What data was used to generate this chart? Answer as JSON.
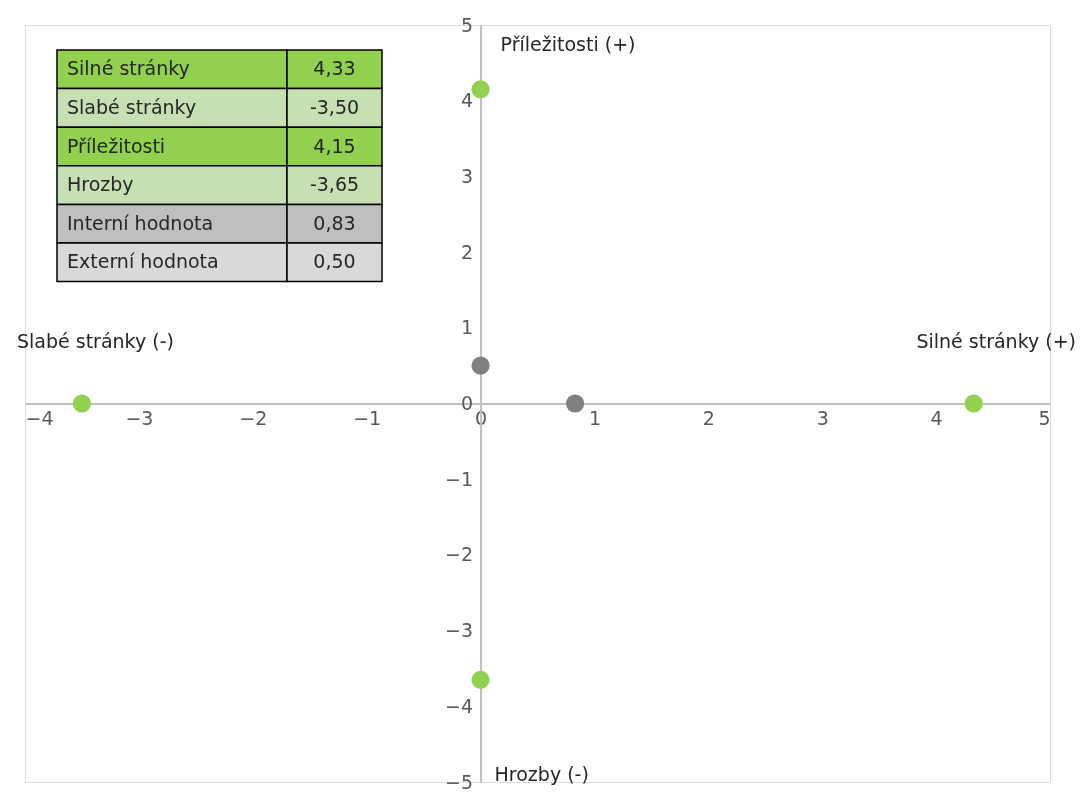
{
  "chart_data": [
    {
      "type": "scatter",
      "annotations": [
        "Příležitosti (+)",
        "Slabé stránky (-)",
        "Silné stránky (+)",
        "Hrozby (-)"
      ],
      "series": [
        {
          "color": "#92d050",
          "x": [
            4.33,
            -3.5,
            0,
            0
          ],
          "values": [
            0,
            0,
            4.15,
            -3.65
          ]
        },
        {
          "color": "#808080",
          "x": [
            0.83,
            0
          ],
          "values": [
            0,
            0.5
          ]
        }
      ],
      "xlim": [
        -4,
        5
      ],
      "ylim": [
        -5,
        5
      ],
      "xticks": [
        -4,
        -3,
        -2,
        -1,
        0,
        1,
        2,
        3,
        4,
        5
      ],
      "yticks": [
        -5,
        -4,
        -3,
        -2,
        -1,
        0,
        1,
        2,
        3,
        4,
        5
      ],
      "grid": false,
      "legend": false,
      "marker": "circle"
    },
    {
      "type": "other",
      "annotations": [
        "Silné stránky",
        "4,33",
        "Slabé stránky",
        "-3,50",
        "Příležitosti",
        "4,15",
        "Hrozby",
        "-3,65",
        "Interní hodnota",
        "0,83",
        "Externí hodnota",
        "0,50"
      ]
    }
  ]
}
